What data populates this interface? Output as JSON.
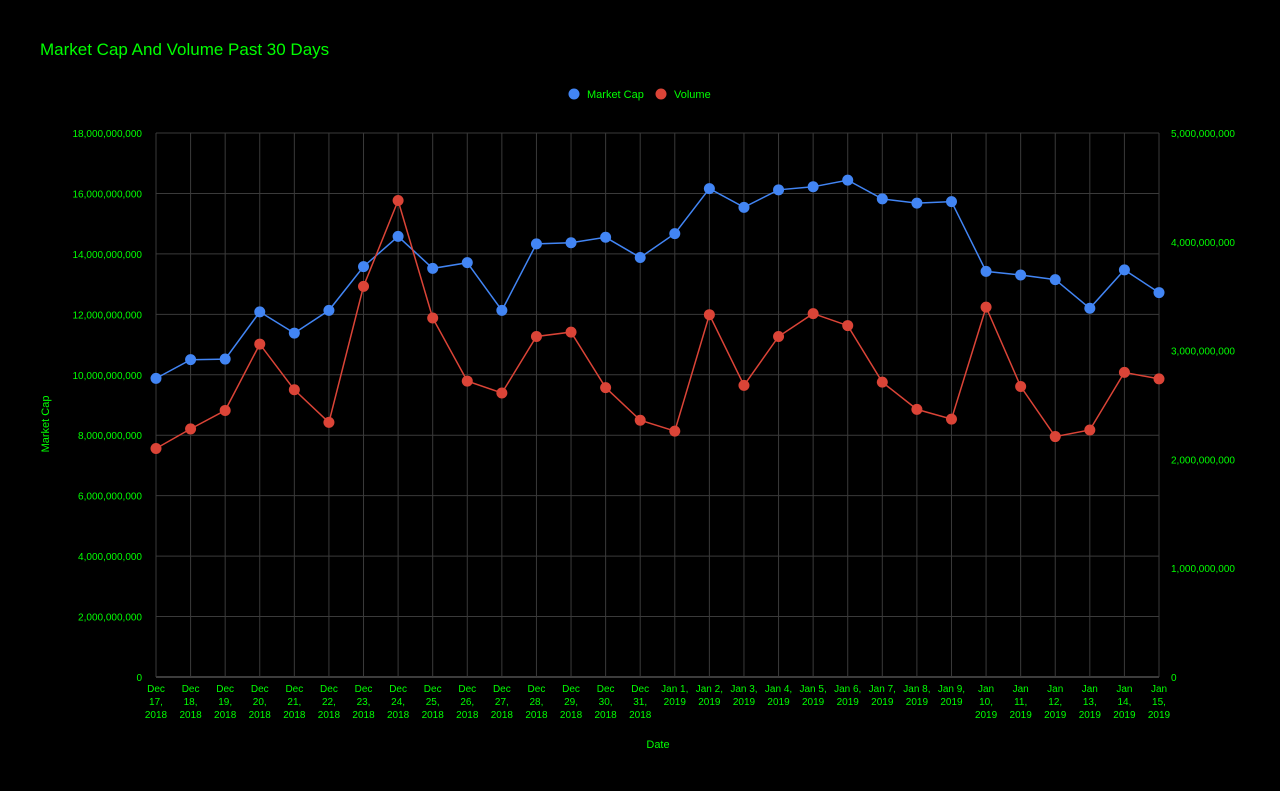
{
  "chart_data": {
    "type": "line",
    "title": "Market Cap And Volume Past 30 Days",
    "xlabel": "Date",
    "ylabel": "Market Cap",
    "ylabel_right": "",
    "legend_position": "top-center",
    "grid": true,
    "colors": {
      "text": "#00ff00",
      "background": "#000000",
      "grid": "#3a3a3a"
    },
    "ylim": [
      0,
      18000000000
    ],
    "ylim_right": [
      0,
      5000000000
    ],
    "y_ticks": [
      "0",
      "2,000,000,000",
      "4,000,000,000",
      "6,000,000,000",
      "8,000,000,000",
      "10,000,000,000",
      "12,000,000,000",
      "14,000,000,000",
      "16,000,000,000",
      "18,000,000,000"
    ],
    "y_ticks_right": [
      "0",
      "1,000,000,000",
      "2,000,000,000",
      "3,000,000,000",
      "4,000,000,000",
      "5,000,000,000"
    ],
    "categories": [
      [
        "Dec",
        "17,",
        "2018"
      ],
      [
        "Dec",
        "18,",
        "2018"
      ],
      [
        "Dec",
        "19,",
        "2018"
      ],
      [
        "Dec",
        "20,",
        "2018"
      ],
      [
        "Dec",
        "21,",
        "2018"
      ],
      [
        "Dec",
        "22,",
        "2018"
      ],
      [
        "Dec",
        "23,",
        "2018"
      ],
      [
        "Dec",
        "24,",
        "2018"
      ],
      [
        "Dec",
        "25,",
        "2018"
      ],
      [
        "Dec",
        "26,",
        "2018"
      ],
      [
        "Dec",
        "27,",
        "2018"
      ],
      [
        "Dec",
        "28,",
        "2018"
      ],
      [
        "Dec",
        "29,",
        "2018"
      ],
      [
        "Dec",
        "30,",
        "2018"
      ],
      [
        "Dec",
        "31,",
        "2018"
      ],
      [
        "Jan 1,",
        "2019"
      ],
      [
        "Jan 2,",
        "2019"
      ],
      [
        "Jan 3,",
        "2019"
      ],
      [
        "Jan 4,",
        "2019"
      ],
      [
        "Jan 5,",
        "2019"
      ],
      [
        "Jan 6,",
        "2019"
      ],
      [
        "Jan 7,",
        "2019"
      ],
      [
        "Jan 8,",
        "2019"
      ],
      [
        "Jan 9,",
        "2019"
      ],
      [
        "Jan",
        "10,",
        "2019"
      ],
      [
        "Jan",
        "11,",
        "2019"
      ],
      [
        "Jan",
        "12,",
        "2019"
      ],
      [
        "Jan",
        "13,",
        "2019"
      ],
      [
        "Jan",
        "14,",
        "2019"
      ],
      [
        "Jan",
        "15,",
        "2019"
      ]
    ],
    "series": [
      {
        "name": "Market Cap",
        "axis": "left",
        "color": "#4285f4",
        "values": [
          9880000000,
          10500000000,
          10520000000,
          12080000000,
          11380000000,
          12130000000,
          13580000000,
          14580000000,
          13520000000,
          13710000000,
          12130000000,
          14330000000,
          14370000000,
          14550000000,
          13880000000,
          14670000000,
          16160000000,
          15540000000,
          16120000000,
          16220000000,
          16440000000,
          15820000000,
          15680000000,
          15730000000,
          13420000000,
          13300000000,
          13150000000,
          12200000000,
          13470000000,
          12720000000
        ]
      },
      {
        "name": "Volume",
        "axis": "right",
        "color": "#db4437",
        "values": [
          2100000000,
          2280000000,
          2450000000,
          3060000000,
          2640000000,
          2340000000,
          3590000000,
          4380000000,
          3300000000,
          2720000000,
          2610000000,
          3130000000,
          3170000000,
          2660000000,
          2360000000,
          2260000000,
          3330000000,
          2680000000,
          3130000000,
          3340000000,
          3230000000,
          2710000000,
          2460000000,
          2370000000,
          3400000000,
          2670000000,
          2210000000,
          2270000000,
          2800000000,
          2740000000
        ]
      }
    ]
  }
}
